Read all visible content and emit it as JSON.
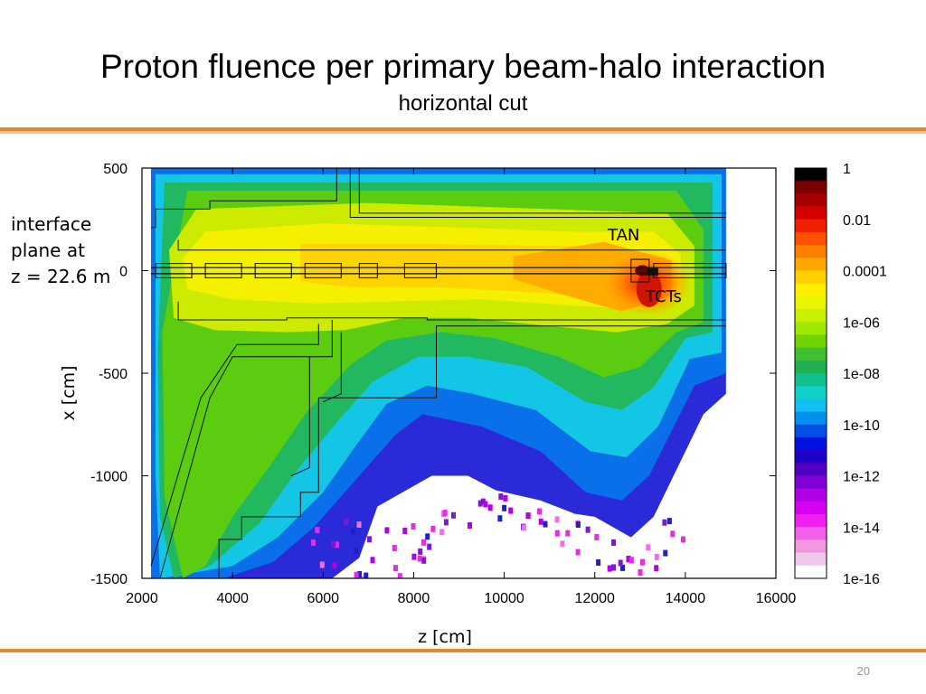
{
  "slide": {
    "title": "Proton fluence per primary beam-halo interaction",
    "subtitle": "horizontal cut",
    "note_lines": [
      "interface",
      "plane at",
      "z = 22.6 m"
    ],
    "page_number": "20",
    "accent_color": "#e8852a"
  },
  "chart_data": {
    "type": "heatmap",
    "xlabel": "z [cm]",
    "ylabel": "x [cm]",
    "xlim": [
      2000,
      16000
    ],
    "ylim": [
      -1500,
      500
    ],
    "x_ticks": [
      "2000",
      "4000",
      "6000",
      "8000",
      "10000",
      "12000",
      "14000",
      "16000"
    ],
    "y_ticks": [
      "500",
      "0",
      "-500",
      "-1000",
      "-1500"
    ],
    "data_extent_z": [
      2200,
      14900
    ],
    "colorbar": {
      "scale": "log",
      "range": [
        1e-16,
        1
      ],
      "tick_labels": [
        "1",
        "0.01",
        "0.0001",
        "1e-06",
        "1e-08",
        "1e-10",
        "1e-12",
        "1e-14",
        "1e-16"
      ],
      "colors": [
        "#000000",
        "#7a0000",
        "#a80000",
        "#d40000",
        "#f02000",
        "#ff5000",
        "#ff8000",
        "#ffa800",
        "#ffd000",
        "#ffee00",
        "#e8f400",
        "#c8f000",
        "#a0e800",
        "#70d400",
        "#40c030",
        "#20b050",
        "#10c090",
        "#10d0c8",
        "#10c0f0",
        "#0090f0",
        "#0050e8",
        "#0010e0",
        "#2000c8",
        "#5000c0",
        "#8000d8",
        "#b000e8",
        "#d800f0",
        "#f020f0",
        "#f060e8",
        "#f098e0",
        "#f0c8ec",
        "#ffffff"
      ]
    },
    "annotations": [
      "TAN",
      "TCTs"
    ],
    "grid": false
  }
}
